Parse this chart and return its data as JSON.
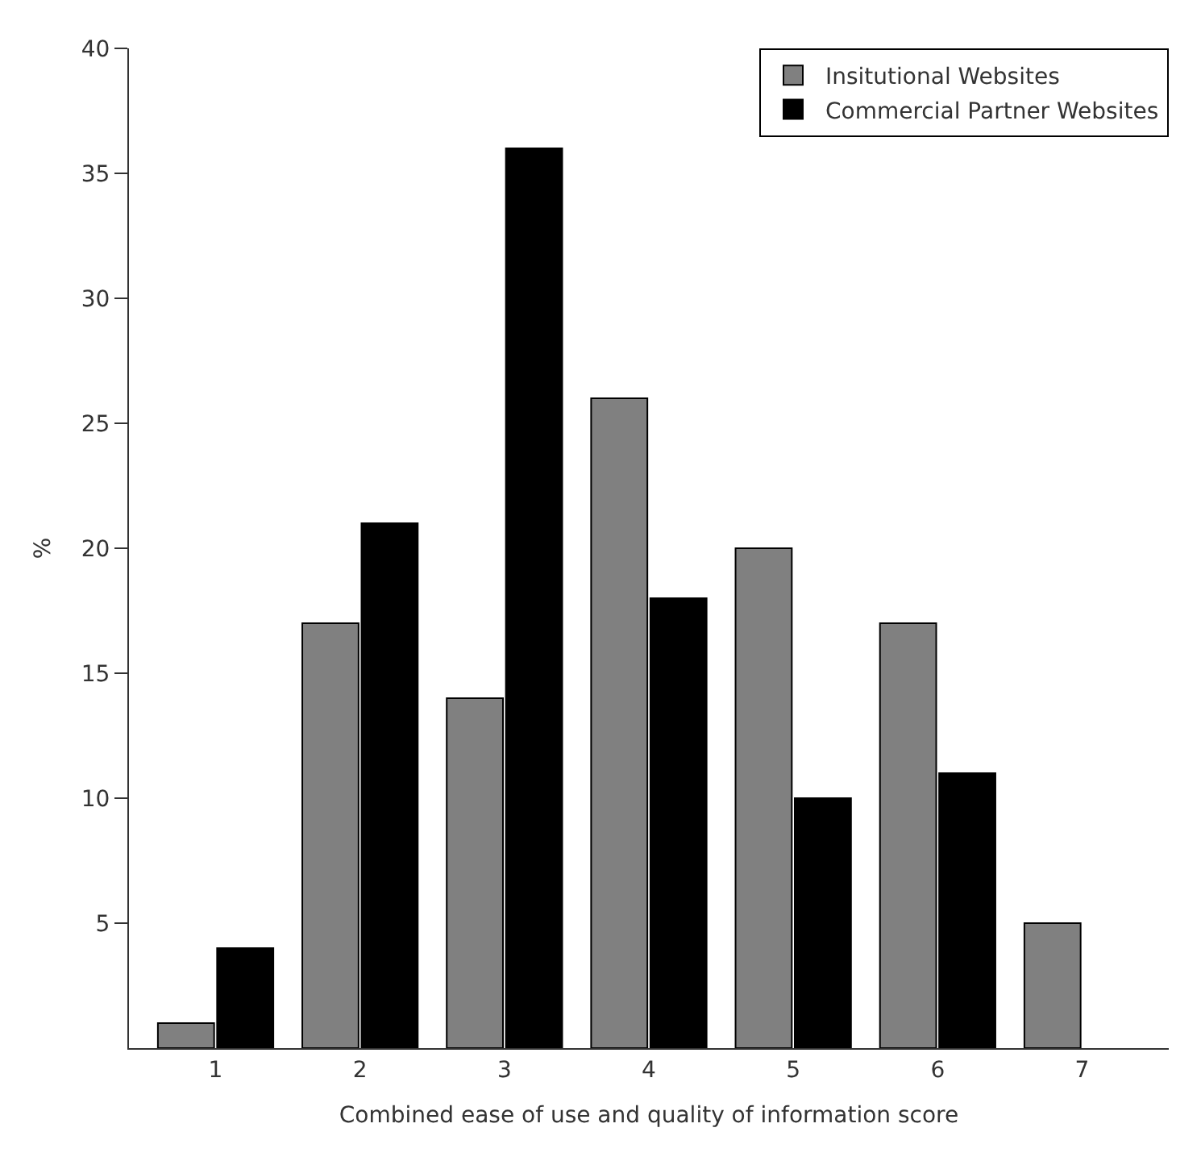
{
  "chart_data": {
    "type": "bar",
    "xlabel": "Combined ease of use and quality of information score",
    "ylabel": "%",
    "categories": [
      "1",
      "2",
      "3",
      "4",
      "5",
      "6",
      "7"
    ],
    "series": [
      {
        "name": "Insitutional Websites",
        "color": "#808080",
        "values": [
          1,
          17,
          14,
          26,
          20,
          17,
          5
        ]
      },
      {
        "name": "Commercial Partner Websites",
        "color": "#000000",
        "values": [
          4,
          21,
          36,
          18,
          10,
          11,
          null
        ]
      }
    ],
    "ylim": [
      0,
      40
    ],
    "yticks": [
      5,
      10,
      15,
      20,
      25,
      30,
      35,
      40
    ],
    "legend": "top right"
  }
}
